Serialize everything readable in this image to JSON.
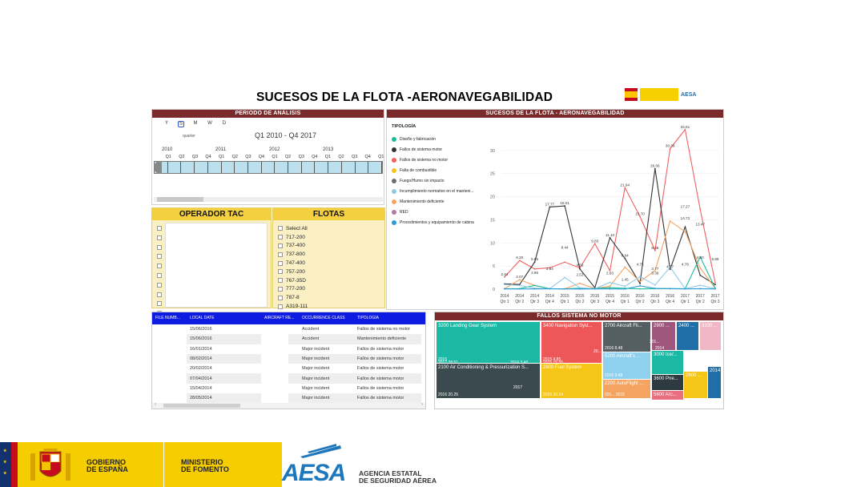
{
  "title": "SUCESOS DE LA FLOTA -AERONAVEGABILIDAD",
  "periodo": {
    "header": "PERIODO DE ANÁLISIS",
    "granularity": [
      "Y",
      "S",
      "M",
      "W",
      "D"
    ],
    "granularity_selected": "S",
    "granularity_label": "quarter",
    "range": "Q1 2010 - Q4 2017",
    "years": [
      "2010",
      "2011",
      "2012",
      "2013"
    ],
    "quarters": [
      "Q1",
      "Q2",
      "Q3",
      "Q4",
      "Q1",
      "Q2",
      "Q3",
      "Q4",
      "Q1",
      "Q2",
      "Q3",
      "Q4",
      "Q1",
      "Q2",
      "Q3",
      "Q4",
      "Q1"
    ]
  },
  "operador": {
    "header": "OPERADOR TAC"
  },
  "flotas": {
    "header": "FLOTAS",
    "items": [
      "Select All",
      "717-200",
      "737-400",
      "737-800",
      "747-400",
      "757-200",
      "767-35D",
      "777-200",
      "787-8",
      "A319-111"
    ]
  },
  "sucesos": {
    "header": "SUCESOS DE LA FLOTA - AERONAVEGABILIDAD",
    "legend_title": "TIPOLOGÍA",
    "legend": [
      {
        "label": "Diseño y fabricación",
        "color": "#1abc9c"
      },
      {
        "label": "Fallos de sistema motor",
        "color": "#333333"
      },
      {
        "label": "Fallos de sistema no motor",
        "color": "#f06060"
      },
      {
        "label": "Falta de combustible",
        "color": "#f2c318"
      },
      {
        "label": "Fuego/Humo sin impacto",
        "color": "#6e6e6e"
      },
      {
        "label": "Incumplimiento normativo en el manteni...",
        "color": "#8ecae6"
      },
      {
        "label": "Mantenimiento deficiente",
        "color": "#f4a460"
      },
      {
        "label": "RED",
        "color": "#b07aa1"
      },
      {
        "label": "Procedimientos y equipamiento de cabina",
        "color": "#2e9bd6"
      }
    ]
  },
  "chart_data": {
    "type": "line",
    "x": [
      "2014 Qtr 1",
      "2014 Qtr 2",
      "2014 Qtr 3",
      "2014 Qtr 4",
      "2015 Qtr 1",
      "2015 Qtr 2",
      "2015 Qtr 3",
      "2015 Qtr 4",
      "2016 Qtr 1",
      "2016 Qtr 2",
      "2016 Qtr 3",
      "2016 Qtr 4",
      "2017 Qtr 1",
      "2017 Qtr 2",
      "2017 Qtr 3"
    ],
    "x_top": [
      "2014",
      "2014",
      "2014",
      "2014",
      "2015",
      "2015",
      "2015",
      "2015",
      "2016",
      "2016",
      "2016",
      "2016",
      "2017",
      "2017",
      "2017"
    ],
    "x_bottom": [
      "Qtr 1",
      "Qtr 2",
      "Qtr 3",
      "Qtr 4",
      "Qtr 1",
      "Qtr 2",
      "Qtr 3",
      "Qtr 4",
      "Qtr 1",
      "Qtr 2",
      "Qtr 3",
      "Qtr 4",
      "Qtr 1",
      "Qtr 2",
      "Qtr 3"
    ],
    "ylim": [
      0,
      35
    ],
    "yticks": [
      0,
      5,
      10,
      15,
      20,
      25,
      30
    ],
    "series": [
      {
        "name": "Fallos de sistema no motor",
        "color": "#f06060",
        "values": [
          2.64,
          6.2,
          4.36,
          4.62,
          5.84,
          4.59,
          9.83,
          4.01,
          21.94,
          15.7,
          8.36,
          30.39,
          34.51,
          17.27,
          1.39
        ]
      },
      {
        "name": "Fallos de sistema motor",
        "color": "#333333",
        "values": [
          1.15,
          1.0,
          5.85,
          17.77,
          18.01,
          4.39,
          0.31,
          11.1,
          6.64,
          1.21,
          26.06,
          4.27,
          13.47,
          3.0,
          1.0
        ]
      },
      {
        "name": "Mantenimiento deficiente",
        "color": "#f4a460",
        "values": [
          0.1,
          2.07,
          0.81,
          0.11,
          0.06,
          1.27,
          0.15,
          0.64,
          4.75,
          1.64,
          4.01,
          14.72,
          12.44,
          4.56,
          0.19
        ]
      },
      {
        "name": "Diseño y fabricación",
        "color": "#1abc9c",
        "values": [
          0.1,
          0.1,
          0.81,
          0.11,
          0.06,
          0.2,
          0.15,
          0.31,
          0.18,
          0.06,
          0.1,
          0.12,
          0.1,
          7.0,
          0.19
        ]
      },
      {
        "name": "Incumplimiento normativo en el manteni...",
        "color": "#8ecae6",
        "values": [
          1.0,
          0.8,
          0.2,
          0.1,
          2.53,
          0.3,
          0.1,
          1.45,
          0.62,
          2.71,
          0.9,
          4.76,
          0.1,
          0.84,
          0.1
        ]
      },
      {
        "name": "Procedimientos y equipamiento de cabina",
        "color": "#2e9bd6",
        "values": [
          0.05,
          0.04,
          0.05,
          0.08,
          0.05,
          0.03,
          0.06,
          0.05,
          0.04,
          0.7,
          0.17,
          0.1,
          0.06,
          0.1,
          0.05
        ]
      }
    ],
    "data_labels": [
      {
        "text": "2.64",
        "xi": 0,
        "y": 2.64
      },
      {
        "text": "6.20",
        "xi": 1,
        "y": 6.2
      },
      {
        "text": "5.85",
        "xi": 2,
        "y": 5.85
      },
      {
        "text": "17.77",
        "xi": 3,
        "y": 17.77
      },
      {
        "text": "18.01",
        "xi": 4,
        "y": 18.01
      },
      {
        "text": "8.44",
        "xi": 4,
        "y": 8.44
      },
      {
        "text": "9.83",
        "xi": 6,
        "y": 9.83
      },
      {
        "text": "11.10",
        "xi": 7,
        "y": 11.1
      },
      {
        "text": "21.94",
        "xi": 8,
        "y": 21.94
      },
      {
        "text": "15.70",
        "xi": 9,
        "y": 15.7
      },
      {
        "text": "26.06",
        "xi": 10,
        "y": 26.06
      },
      {
        "text": "30.39",
        "xi": 11,
        "y": 30.39
      },
      {
        "text": "34.51",
        "xi": 12,
        "y": 34.51
      },
      {
        "text": "17.27",
        "xi": 12,
        "y": 17.27
      },
      {
        "text": "14.72",
        "xi": 12,
        "y": 14.72
      },
      {
        "text": "13.47",
        "xi": 13,
        "y": 13.47
      },
      {
        "text": "5.89",
        "xi": 14,
        "y": 5.89
      },
      {
        "text": "4.50",
        "xi": 13,
        "y": 6.2
      },
      {
        "text": "4.59",
        "xi": 5,
        "y": 4.59
      },
      {
        "text": "2.53",
        "xi": 5,
        "y": 2.53
      },
      {
        "text": "3.84",
        "xi": 3,
        "y": 3.84
      },
      {
        "text": "2.96",
        "xi": 2,
        "y": 2.96
      },
      {
        "text": "2.07",
        "xi": 1,
        "y": 2.07
      },
      {
        "text": "4.75",
        "xi": 9,
        "y": 4.75
      },
      {
        "text": "6.64",
        "xi": 8,
        "y": 6.64
      },
      {
        "text": "4.27",
        "xi": 11,
        "y": 4.27
      },
      {
        "text": "3.77",
        "xi": 10,
        "y": 3.77
      },
      {
        "text": "3.36",
        "xi": 10,
        "y": 2.9
      },
      {
        "text": "4.76",
        "xi": 12,
        "y": 4.76
      },
      {
        "text": "2.83",
        "xi": 7,
        "y": 2.83
      },
      {
        "text": "8.36",
        "xi": 10,
        "y": 8.36
      },
      {
        "text": "1.45",
        "xi": 8,
        "y": 1.45
      }
    ]
  },
  "table": {
    "columns": [
      "FILE NUMB...",
      "LOCAL DATE",
      "AIRCRAFT RE...",
      "OCCURRENCE CLASS",
      "TIPOLOGÍA"
    ],
    "rows": [
      [
        "",
        "15/06/2016",
        "",
        "Accident",
        "Fallos de sistema no motor"
      ],
      [
        "",
        "15/06/2016",
        "",
        "Accident",
        "Mantenimiento deficiente"
      ],
      [
        "",
        "16/01/2014",
        "",
        "Major incident",
        "Fallos de sistema motor"
      ],
      [
        "",
        "08/02/2014",
        "",
        "Major incident",
        "Fallos de sistema motor"
      ],
      [
        "",
        "20/02/2014",
        "",
        "Major incident",
        "Fallos de sistema motor"
      ],
      [
        "",
        "07/04/2014",
        "",
        "Major incident",
        "Fallos de sistema motor"
      ],
      [
        "",
        "15/04/2014",
        "",
        "Major incident",
        "Fallos de sistema motor"
      ],
      [
        "",
        "28/05/2014",
        "",
        "Major incident",
        "Fallos de sistema motor"
      ]
    ]
  },
  "fallos": {
    "header": "FALLOS SISTEMA NO MOTOR",
    "blocks": [
      {
        "label": "3200 Landing Gear System",
        "sub": "2015",
        "color": "#1ab8a5"
      },
      {
        "label": "2100 Air Conditioning & Pressurization S...",
        "sub": "2016 20.25",
        "sub2": "2017",
        "color": "#3b4a4f"
      },
      {
        "label": "3400 Navigation Syst...",
        "sub": "2015 4.85",
        "color": "#ee5757"
      },
      {
        "label": "2800 Fuel System",
        "sub": "2016 10.14",
        "color": "#f5c518"
      },
      {
        "label": "2700 Aircraft Fli...",
        "sub": "2016 8.48",
        "color": "#555e63"
      },
      {
        "label": "5200 Aircraft's ...",
        "sub": "2016 9.48",
        "color": "#8fd0ee"
      },
      {
        "label": "2200 AutoFlight ...",
        "sub": "201... 2015",
        "color": "#f4a460"
      },
      {
        "label": "2900 ...",
        "color": "#a0577d"
      },
      {
        "label": "2400 ...",
        "color": "#1f6ea8"
      },
      {
        "label": "3100 ...",
        "color": "#f0b8c6"
      },
      {
        "label": "3000 Ice/...",
        "color": "#1ab8a5"
      },
      {
        "label": "3600 Pne...",
        "color": "#2d3a40"
      },
      {
        "label": "5600 Arc...",
        "color": "#e76f7e"
      },
      {
        "label": "2600 ...",
        "color": "#f5c518"
      },
      {
        "label": "2014 ...",
        "color": "#1f6ea8"
      }
    ],
    "extra_labels": [
      "2017 28.51",
      "2016 3.40",
      "2015 15.55",
      "20...",
      "201...",
      "2014"
    ]
  },
  "footer": {
    "gobierno": [
      "GOBIERNO",
      "DE ESPAÑA"
    ],
    "ministerio": [
      "MINISTERIO",
      "DE FOMENTO"
    ],
    "aesa": "AESA",
    "agencia": [
      "AGENCIA ESTATAL",
      "DE SEGURIDAD AÉREA"
    ]
  }
}
